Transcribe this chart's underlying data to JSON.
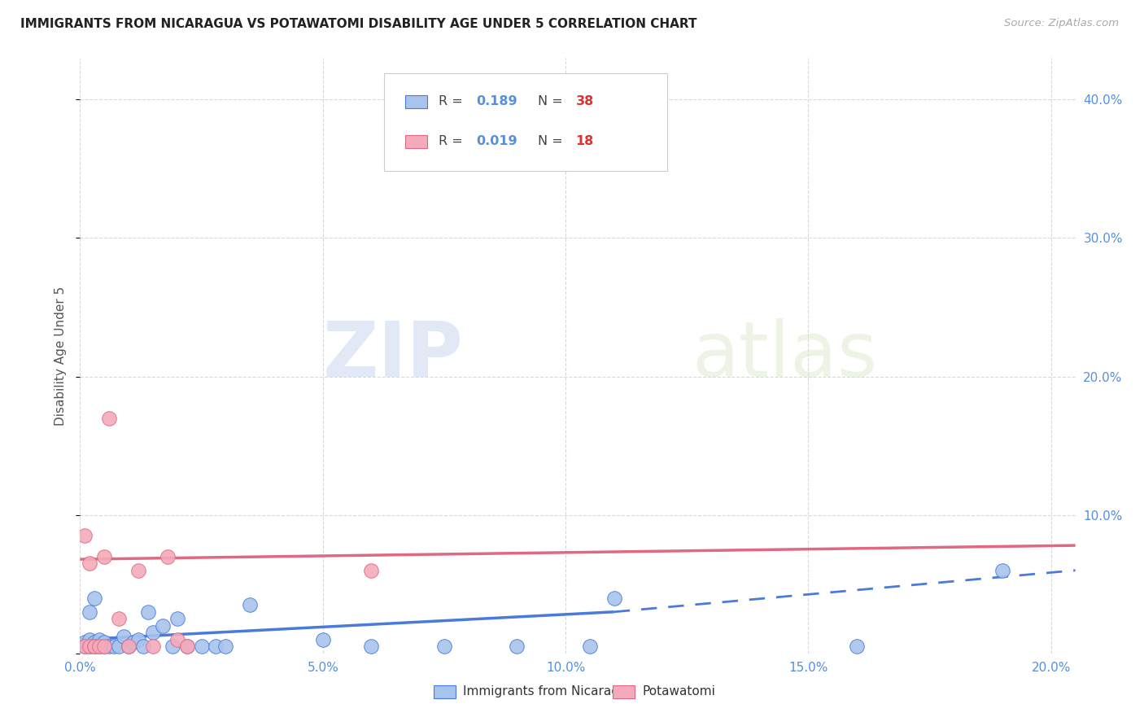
{
  "title": "IMMIGRANTS FROM NICARAGUA VS POTAWATOMI DISABILITY AGE UNDER 5 CORRELATION CHART",
  "source": "Source: ZipAtlas.com",
  "ylabel": "Disability Age Under 5",
  "xlim": [
    0.0,
    0.205
  ],
  "ylim": [
    0.0,
    0.43
  ],
  "xticks": [
    0.0,
    0.05,
    0.1,
    0.15,
    0.2
  ],
  "yticks": [
    0.0,
    0.1,
    0.2,
    0.3,
    0.4
  ],
  "xtick_labels": [
    "0.0%",
    "5.0%",
    "10.0%",
    "15.0%",
    "20.0%"
  ],
  "ytick_labels": [
    "",
    "10.0%",
    "20.0%",
    "30.0%",
    "40.0%"
  ],
  "blue_color": "#a8c4ec",
  "pink_color": "#f4aabb",
  "trend_blue_color": "#4a7adc",
  "trend_pink_color": "#e06880",
  "blue_scatter_x": [
    0.001,
    0.001,
    0.002,
    0.002,
    0.002,
    0.003,
    0.003,
    0.003,
    0.004,
    0.004,
    0.005,
    0.005,
    0.006,
    0.007,
    0.008,
    0.009,
    0.01,
    0.011,
    0.012,
    0.013,
    0.014,
    0.015,
    0.017,
    0.019,
    0.02,
    0.022,
    0.025,
    0.028,
    0.03,
    0.035,
    0.05,
    0.06,
    0.075,
    0.09,
    0.105,
    0.11,
    0.16,
    0.19
  ],
  "blue_scatter_y": [
    0.005,
    0.008,
    0.005,
    0.01,
    0.03,
    0.005,
    0.008,
    0.04,
    0.005,
    0.01,
    0.005,
    0.008,
    0.005,
    0.005,
    0.005,
    0.012,
    0.005,
    0.008,
    0.01,
    0.005,
    0.03,
    0.015,
    0.02,
    0.005,
    0.025,
    0.005,
    0.005,
    0.005,
    0.005,
    0.035,
    0.01,
    0.005,
    0.005,
    0.005,
    0.005,
    0.04,
    0.005,
    0.06
  ],
  "pink_scatter_x": [
    0.001,
    0.001,
    0.002,
    0.002,
    0.003,
    0.003,
    0.004,
    0.005,
    0.005,
    0.006,
    0.008,
    0.01,
    0.012,
    0.015,
    0.018,
    0.02,
    0.022,
    0.06
  ],
  "pink_scatter_y": [
    0.005,
    0.085,
    0.005,
    0.065,
    0.005,
    0.005,
    0.005,
    0.005,
    0.07,
    0.17,
    0.025,
    0.005,
    0.06,
    0.005,
    0.07,
    0.01,
    0.005,
    0.06
  ],
  "trend_blue_x0": 0.0,
  "trend_blue_y0": 0.01,
  "trend_blue_x1": 0.11,
  "trend_blue_y1": 0.03,
  "trend_blue_dash_x0": 0.11,
  "trend_blue_dash_y0": 0.03,
  "trend_blue_dash_x1": 0.205,
  "trend_blue_dash_y1": 0.06,
  "trend_pink_x0": 0.0,
  "trend_pink_y0": 0.068,
  "trend_pink_x1": 0.205,
  "trend_pink_y1": 0.078,
  "watermark_zip": "ZIP",
  "watermark_atlas": "atlas",
  "background_color": "#ffffff",
  "grid_color": "#d0d0d0",
  "tick_color": "#5590dd",
  "legend_r_color": "#333333",
  "legend_val_color": "#5590dd",
  "legend_n_color": "#333333",
  "legend_n_val_color": "#dd4444"
}
